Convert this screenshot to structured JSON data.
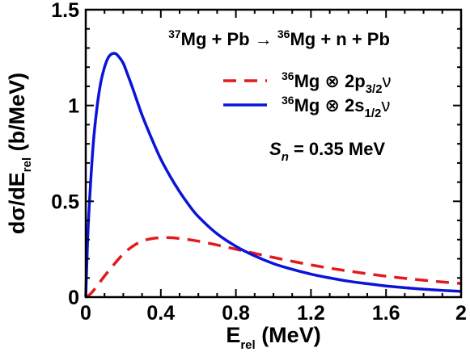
{
  "chart_data": {
    "type": "line",
    "title": "",
    "xlabel": {
      "main": "E",
      "sub": "rel",
      "rest": " (MeV)"
    },
    "ylabel": {
      "pre": "dσ/dE",
      "sub": "rel",
      "rest": " (b/MeV)"
    },
    "xlim": [
      0,
      2
    ],
    "ylim": [
      0,
      1.5
    ],
    "x_ticks": [
      0,
      0.4,
      0.8,
      1.2,
      1.6,
      2
    ],
    "x_tick_labels": [
      "0",
      "0.4",
      "0.8",
      "1.2",
      "1.6",
      "2"
    ],
    "y_ticks": [
      0,
      0.5,
      1,
      1.5
    ],
    "y_tick_labels": [
      "0",
      "0.5",
      "1",
      "1.5"
    ],
    "reaction": {
      "mass1": "37",
      "text1": "Mg + Pb ",
      "arrow": "→",
      "mass2": "36",
      "text2": "Mg + n + Pb"
    },
    "separation_energy": {
      "symbol": "S",
      "sub": "n",
      "text": " = 0.35 MeV"
    },
    "legend_position": "upper-right",
    "series": [
      {
        "name": {
          "mass": "36",
          "text": "Mg ⊗ 2p",
          "sub": "3/2",
          "nu": "ν"
        },
        "color": "#e31a1c",
        "dash": "dashed",
        "x": [
          0,
          0.02,
          0.05,
          0.1,
          0.15,
          0.2,
          0.25,
          0.3,
          0.35,
          0.4,
          0.45,
          0.5,
          0.55,
          0.6,
          0.7,
          0.8,
          0.9,
          1.0,
          1.1,
          1.2,
          1.3,
          1.4,
          1.5,
          1.6,
          1.7,
          1.8,
          1.9,
          2.0
        ],
        "y": [
          0,
          0.012,
          0.045,
          0.11,
          0.17,
          0.225,
          0.265,
          0.292,
          0.305,
          0.31,
          0.31,
          0.306,
          0.3,
          0.292,
          0.272,
          0.25,
          0.228,
          0.207,
          0.187,
          0.168,
          0.151,
          0.136,
          0.122,
          0.109,
          0.098,
          0.088,
          0.079,
          0.071
        ]
      },
      {
        "name": {
          "mass": "36",
          "text": "Mg ⊗ 2s",
          "sub": "1/2",
          "nu": "ν"
        },
        "color": "#0a14d8",
        "dash": "solid",
        "x": [
          0,
          0.01,
          0.02,
          0.04,
          0.06,
          0.08,
          0.1,
          0.12,
          0.14,
          0.16,
          0.18,
          0.2,
          0.22,
          0.25,
          0.3,
          0.35,
          0.4,
          0.45,
          0.5,
          0.55,
          0.6,
          0.7,
          0.8,
          0.9,
          1.0,
          1.1,
          1.2,
          1.3,
          1.4,
          1.5,
          1.6,
          1.7,
          1.8,
          1.9,
          2.0
        ],
        "y": [
          0,
          0.3,
          0.5,
          0.8,
          0.99,
          1.12,
          1.2,
          1.25,
          1.27,
          1.27,
          1.25,
          1.22,
          1.17,
          1.09,
          0.95,
          0.83,
          0.72,
          0.63,
          0.55,
          0.48,
          0.42,
          0.33,
          0.265,
          0.215,
          0.175,
          0.145,
          0.12,
          0.1,
          0.083,
          0.07,
          0.058,
          0.049,
          0.041,
          0.035,
          0.03
        ]
      }
    ]
  }
}
